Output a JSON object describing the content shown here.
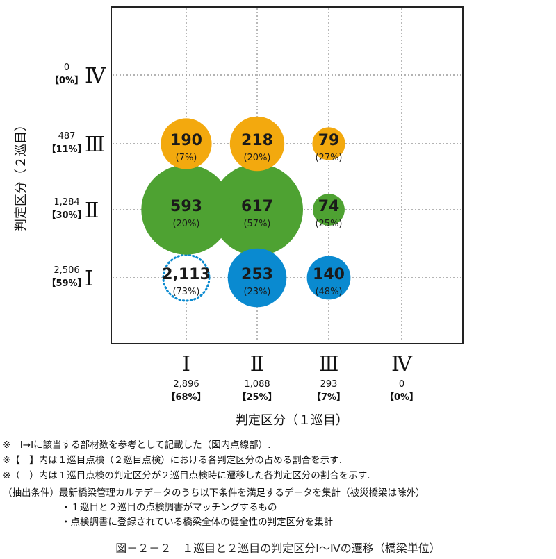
{
  "chart_data": {
    "type": "bubble",
    "xlabel": "判定区分（１巡目）",
    "ylabel": "判定区分（２巡目）",
    "x_categories": [
      {
        "label": "Ⅰ",
        "total": "2,896",
        "pct": "【68%】"
      },
      {
        "label": "Ⅱ",
        "total": "1,088",
        "pct": "【25%】"
      },
      {
        "label": "Ⅲ",
        "total": "293",
        "pct": "【7%】"
      },
      {
        "label": "Ⅳ",
        "total": "0",
        "pct": "【0%】"
      }
    ],
    "y_categories": [
      {
        "label": "Ⅰ",
        "total": "2,506",
        "pct": "【59%】"
      },
      {
        "label": "Ⅱ",
        "total": "1,284",
        "pct": "【30%】"
      },
      {
        "label": "Ⅲ",
        "total": "487",
        "pct": "【11%】"
      },
      {
        "label": "Ⅳ",
        "total": "0",
        "pct": "【0%】"
      }
    ],
    "points": [
      {
        "x": "Ⅰ",
        "y": "Ⅰ",
        "value": 2113,
        "value_label": "2,113",
        "pct_label": "(73%)",
        "color": "#0a8ad0",
        "style": "dotted"
      },
      {
        "x": "Ⅱ",
        "y": "Ⅰ",
        "value": 253,
        "value_label": "253",
        "pct_label": "(23%)",
        "color": "#0a8ad0",
        "style": "fill"
      },
      {
        "x": "Ⅲ",
        "y": "Ⅰ",
        "value": 140,
        "value_label": "140",
        "pct_label": "(48%)",
        "color": "#0a8ad0",
        "style": "fill"
      },
      {
        "x": "Ⅰ",
        "y": "Ⅱ",
        "value": 593,
        "value_label": "593",
        "pct_label": "(20%)",
        "color": "#4ea232",
        "style": "fill"
      },
      {
        "x": "Ⅱ",
        "y": "Ⅱ",
        "value": 617,
        "value_label": "617",
        "pct_label": "(57%)",
        "color": "#4ea232",
        "style": "fill"
      },
      {
        "x": "Ⅲ",
        "y": "Ⅱ",
        "value": 74,
        "value_label": "74",
        "pct_label": "(25%)",
        "color": "#4ea232",
        "style": "fill"
      },
      {
        "x": "Ⅰ",
        "y": "Ⅲ",
        "value": 190,
        "value_label": "190",
        "pct_label": "(7%)",
        "color": "#f3a90e",
        "style": "fill"
      },
      {
        "x": "Ⅱ",
        "y": "Ⅲ",
        "value": 218,
        "value_label": "218",
        "pct_label": "(20%)",
        "color": "#f3a90e",
        "style": "fill"
      },
      {
        "x": "Ⅲ",
        "y": "Ⅲ",
        "value": 79,
        "value_label": "79",
        "pct_label": "(27%)",
        "color": "#f3a90e",
        "style": "fill"
      }
    ],
    "grid": true
  },
  "notes": [
    "※　Ⅰ→Ⅰに該当する部材数を参考として記載した（図内点線部）.",
    "※【　】内は１巡目点検（２巡目点検）における各判定区分の占める割合を示す.",
    "※（　）内は１巡目点検の判定区分が２巡目点検時に遷移した各判定区分の割合を示す."
  ],
  "conditions": {
    "heading": "（抽出条件）最新橋梁管理カルテデータのうち以下条件を満足するデータを集計（被災橋梁は除外）",
    "items": [
      "・１巡目と２巡目の点検調書がマッチングするもの",
      "・点検調書に登録されている橋梁全体の健全性の判定区分を集計"
    ]
  },
  "caption": "図－２－２　１巡目と２巡目の判定区分Ⅰ～Ⅳの遷移（橋梁単位）"
}
